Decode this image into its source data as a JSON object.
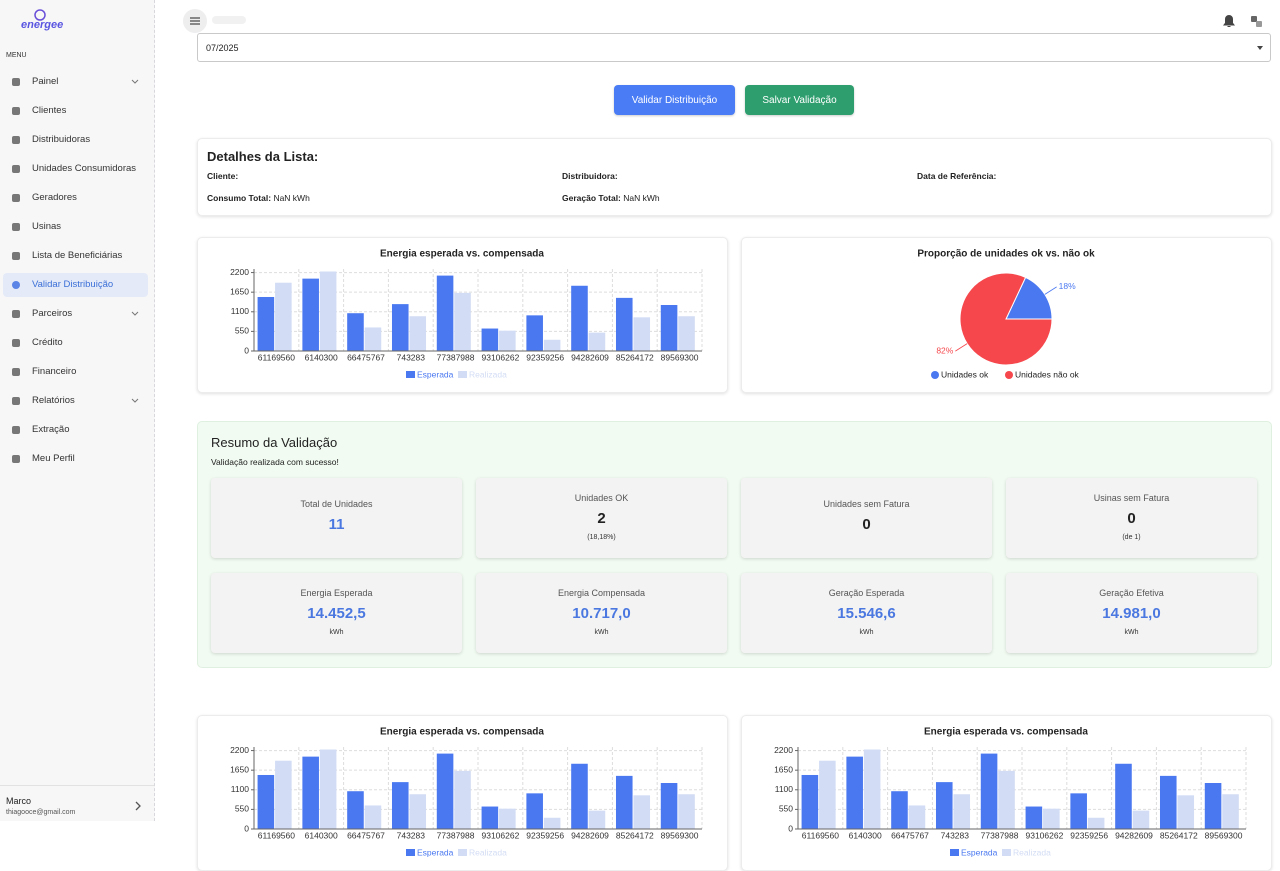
{
  "sidebar": {
    "logo": "energee",
    "menu_label": "MENU",
    "active_item": 7,
    "items": [
      {
        "label": "Painel",
        "submenu": true
      },
      {
        "label": "Clientes",
        "submenu": false
      },
      {
        "label": "Distribuidoras",
        "submenu": false
      },
      {
        "label": "Unidades Consumidoras",
        "submenu": false
      },
      {
        "label": "Geradores",
        "submenu": false
      },
      {
        "label": "Usinas",
        "submenu": false
      },
      {
        "label": "Lista de Beneficiárias",
        "submenu": false
      },
      {
        "label": "Validar Distribuição",
        "submenu": false
      },
      {
        "label": "Parceiros",
        "submenu": true
      },
      {
        "label": "Crédito",
        "submenu": false
      },
      {
        "label": "Financeiro",
        "submenu": false
      },
      {
        "label": "Relatórios",
        "submenu": true
      },
      {
        "label": "Extração",
        "submenu": false
      },
      {
        "label": "Meu Perfil",
        "submenu": false
      }
    ],
    "user": {
      "name": "Marco",
      "email": "thiagooce@gmail.com"
    }
  },
  "filter": {
    "period": "07/2025"
  },
  "actions": [
    "Validar Distribuição",
    "Salvar Validação"
  ],
  "details": {
    "title": "Detalhes da Lista:",
    "fields": [
      {
        "label": "Cliente:"
      },
      {
        "label": "Distribuidora:"
      },
      {
        "label": "Data de Referência:"
      },
      {
        "label": "Consumo Total:",
        "value": "NaN kWh"
      },
      {
        "label": "Geração Total:",
        "value": "NaN kWh"
      }
    ]
  },
  "summary": {
    "title": "Resumo da Validação",
    "message": "Validação realizada com sucesso!",
    "cards": [
      {
        "label": "Total de Unidades",
        "value": "11",
        "color": "#4a78e0"
      },
      {
        "label": "Unidades OK",
        "value": "2",
        "note": "(18,18%)",
        "color": "#222222"
      },
      {
        "label": "Unidades sem Fatura",
        "value": "0",
        "color": "#222222"
      },
      {
        "label": "Usinas sem Fatura",
        "value": "0",
        "note": "(de 1)",
        "color": "#222222"
      },
      {
        "label": "Energia Esperada",
        "value": "14.452,5",
        "note": "kWh",
        "color": "#4a78e0"
      },
      {
        "label": "Energia Compensada",
        "value": "10.717,0",
        "note": "kWh",
        "color": "#4a78e0"
      },
      {
        "label": "Geração Esperada",
        "value": "15.546,6",
        "note": "kWh",
        "color": "#4a78e0"
      },
      {
        "label": "Geração Efetiva",
        "value": "14.981,0",
        "note": "kWh",
        "color": "#4a78e0"
      }
    ]
  },
  "chart_data": [
    {
      "type": "bar",
      "title": "Energia esperada vs. compensada",
      "categories": [
        "61169560",
        "6140300",
        "66475767",
        "743283",
        "77387988",
        "93106262",
        "92359256",
        "94282609",
        "85264172",
        "89569300"
      ],
      "series": [
        {
          "name": "Esperada",
          "color": "#4a78f0",
          "values": [
            1515,
            2030,
            1060,
            1315,
            2115,
            630,
            1000,
            1830,
            1490,
            1290
          ]
        },
        {
          "name": "Realizada",
          "color": "#d2dcf4",
          "values": [
            1915,
            2230,
            660,
            975,
            1630,
            570,
            315,
            515,
            945,
            975
          ]
        }
      ],
      "ylim": [
        0,
        2300
      ],
      "yticks": [
        0,
        550,
        1100,
        1650,
        2200
      ],
      "grid": true
    },
    {
      "type": "pie",
      "title": "Proporção de unidades ok vs. não ok",
      "categories": [
        "Unidades ok",
        "Unidades não ok"
      ],
      "values": [
        18,
        82
      ],
      "value_labels": [
        "18%",
        "82%"
      ],
      "colors": [
        "#4a78f0",
        "#f5474c"
      ]
    },
    {
      "type": "bar",
      "title": "Energia esperada vs. compensada",
      "categories": [
        "61169560",
        "6140300",
        "66475767",
        "743283",
        "77387988",
        "93106262",
        "92359256",
        "94282609",
        "85264172",
        "89569300"
      ],
      "series": [
        {
          "name": "Esperada",
          "color": "#4a78f0",
          "values": [
            1515,
            2030,
            1060,
            1315,
            2115,
            630,
            1000,
            1830,
            1490,
            1290
          ]
        },
        {
          "name": "Realizada",
          "color": "#d2dcf4",
          "values": [
            1915,
            2230,
            660,
            975,
            1630,
            570,
            315,
            515,
            945,
            975
          ]
        }
      ],
      "ylim": [
        0,
        2300
      ],
      "yticks": [
        0,
        550,
        1100,
        1650,
        2200
      ],
      "grid": true
    },
    {
      "type": "bar",
      "title": "Energia esperada vs. compensada",
      "categories": [
        "61169560",
        "6140300",
        "66475767",
        "743283",
        "77387988",
        "93106262",
        "92359256",
        "94282609",
        "85264172",
        "89569300"
      ],
      "series": [
        {
          "name": "Esperada",
          "color": "#4a78f0",
          "values": [
            1515,
            2030,
            1060,
            1315,
            2115,
            630,
            1000,
            1830,
            1490,
            1290
          ]
        },
        {
          "name": "Realizada",
          "color": "#d2dcf4",
          "values": [
            1915,
            2230,
            660,
            975,
            1630,
            570,
            315,
            515,
            945,
            975
          ]
        }
      ],
      "ylim": [
        0,
        2300
      ],
      "yticks": [
        0,
        550,
        1100,
        1650,
        2200
      ],
      "grid": true
    }
  ]
}
